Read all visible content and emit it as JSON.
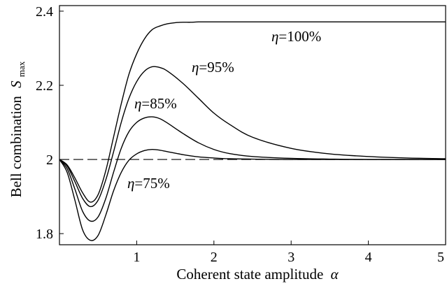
{
  "chart_data": {
    "type": "line",
    "title": "",
    "xlabel": "Coherent state amplitude",
    "xlabel_symbol": "α",
    "ylabel": "Bell combination",
    "ylabel_symbol": "S",
    "ylabel_subscript": "max",
    "xlim": [
      0,
      5
    ],
    "ylim": [
      1.77,
      2.415
    ],
    "xticks": [
      1,
      2,
      3,
      4,
      5
    ],
    "xtick_labels": [
      "1",
      "2",
      "3",
      "4",
      "5"
    ],
    "yticks": [
      1.8,
      2,
      2.2,
      2.4
    ],
    "ytick_labels": [
      "1.8",
      "2",
      "2.2",
      "2.4"
    ],
    "grid": false,
    "reference_line": {
      "y": 2,
      "style": "dashed"
    },
    "series": [
      {
        "name": "η=100%",
        "label_symbol": "η",
        "label_value": "=100%",
        "x": [
          0,
          0.1,
          0.2,
          0.3,
          0.4,
          0.5,
          0.6,
          0.7,
          0.8,
          0.9,
          1.0,
          1.1,
          1.2,
          1.3,
          1.4,
          1.5,
          1.6,
          1.7,
          1.8,
          2.0,
          2.5,
          3.0,
          4.0,
          5.0
        ],
        "y": [
          2.0,
          1.985,
          1.95,
          1.91,
          1.885,
          1.905,
          1.97,
          2.06,
          2.15,
          2.23,
          2.285,
          2.325,
          2.35,
          2.36,
          2.366,
          2.369,
          2.37,
          2.37,
          2.371,
          2.371,
          2.371,
          2.371,
          2.371,
          2.371
        ]
      },
      {
        "name": "η=95%",
        "label_symbol": "η",
        "label_value": "=95%",
        "x": [
          0,
          0.1,
          0.2,
          0.3,
          0.4,
          0.5,
          0.6,
          0.7,
          0.8,
          0.9,
          1.0,
          1.1,
          1.2,
          1.3,
          1.4,
          1.6,
          1.8,
          2.0,
          2.2,
          2.5,
          3.0,
          3.5,
          4.0,
          4.5,
          5.0
        ],
        "y": [
          2.0,
          1.982,
          1.94,
          1.895,
          1.873,
          1.89,
          1.945,
          2.02,
          2.1,
          2.165,
          2.21,
          2.238,
          2.25,
          2.248,
          2.238,
          2.205,
          2.165,
          2.125,
          2.095,
          2.06,
          2.03,
          2.015,
          2.008,
          2.004,
          2.002
        ]
      },
      {
        "name": "η=85%",
        "label_symbol": "η",
        "label_value": "=85%",
        "x": [
          0,
          0.1,
          0.2,
          0.3,
          0.4,
          0.5,
          0.6,
          0.7,
          0.8,
          0.9,
          1.0,
          1.1,
          1.2,
          1.3,
          1.4,
          1.6,
          1.8,
          2.0,
          2.2,
          2.5,
          3.0,
          3.5,
          4.0,
          5.0
        ],
        "y": [
          2.0,
          1.975,
          1.92,
          1.86,
          1.834,
          1.845,
          1.895,
          1.965,
          2.03,
          2.075,
          2.1,
          2.112,
          2.115,
          2.11,
          2.098,
          2.07,
          2.045,
          2.027,
          2.016,
          2.008,
          2.003,
          2.001,
          2.0,
          2.0
        ]
      },
      {
        "name": "η=75%",
        "label_symbol": "η",
        "label_value": "=75%",
        "x": [
          0,
          0.1,
          0.2,
          0.3,
          0.4,
          0.5,
          0.6,
          0.7,
          0.8,
          0.9,
          1.0,
          1.1,
          1.2,
          1.3,
          1.4,
          1.6,
          1.8,
          2.0,
          2.2,
          2.5,
          3.0,
          4.0,
          5.0
        ],
        "y": [
          2.0,
          1.965,
          1.89,
          1.81,
          1.782,
          1.795,
          1.85,
          1.915,
          1.965,
          1.998,
          2.015,
          2.024,
          2.027,
          2.025,
          2.021,
          2.013,
          2.007,
          2.004,
          2.002,
          2.001,
          2.0,
          2.0,
          2.0
        ]
      }
    ]
  }
}
